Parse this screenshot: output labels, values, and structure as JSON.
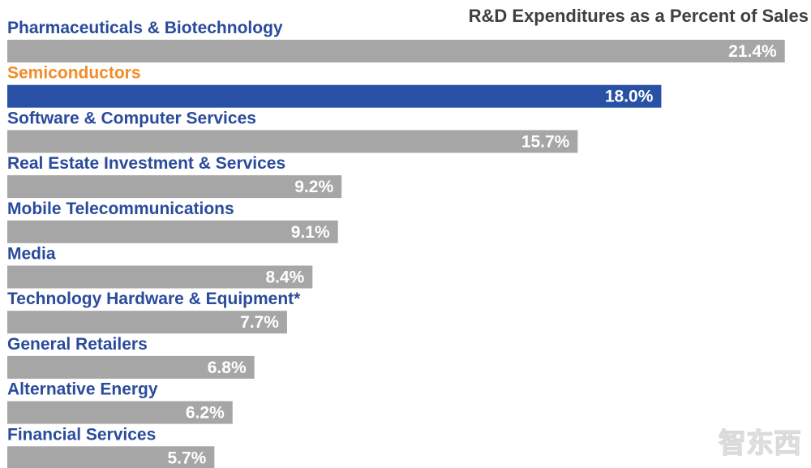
{
  "chart_data": {
    "type": "bar",
    "orientation": "horizontal",
    "title": "R&D Expenditures as a Percent of Sales",
    "xlabel": "",
    "ylabel": "",
    "xlim": [
      0,
      22
    ],
    "grid": false,
    "legend": "none",
    "value_suffix": "%",
    "categories": [
      "Pharmaceuticals & Biotechnology",
      "Semiconductors",
      "Software & Computer Services",
      "Real Estate Investment & Services",
      "Mobile Telecommunications",
      "Media",
      "Technology Hardware & Equipment*",
      "General Retailers",
      "Alternative Energy",
      "Financial Services"
    ],
    "values": [
      21.4,
      18.0,
      15.7,
      9.2,
      9.1,
      8.4,
      7.7,
      6.8,
      6.2,
      5.7
    ],
    "value_labels": [
      "21.4%",
      "18.0%",
      "15.7%",
      "9.2%",
      "9.1%",
      "8.4%",
      "7.7%",
      "6.8%",
      "6.2%",
      "5.7%"
    ],
    "highlight_index": 1
  },
  "colors": {
    "bar_default": "#a6a6a6",
    "bar_highlight": "#2850a4",
    "label_default": "#2a4b9b",
    "label_highlight": "#f28c28",
    "title": "#404040"
  },
  "watermark": {
    "text": "智东西"
  }
}
